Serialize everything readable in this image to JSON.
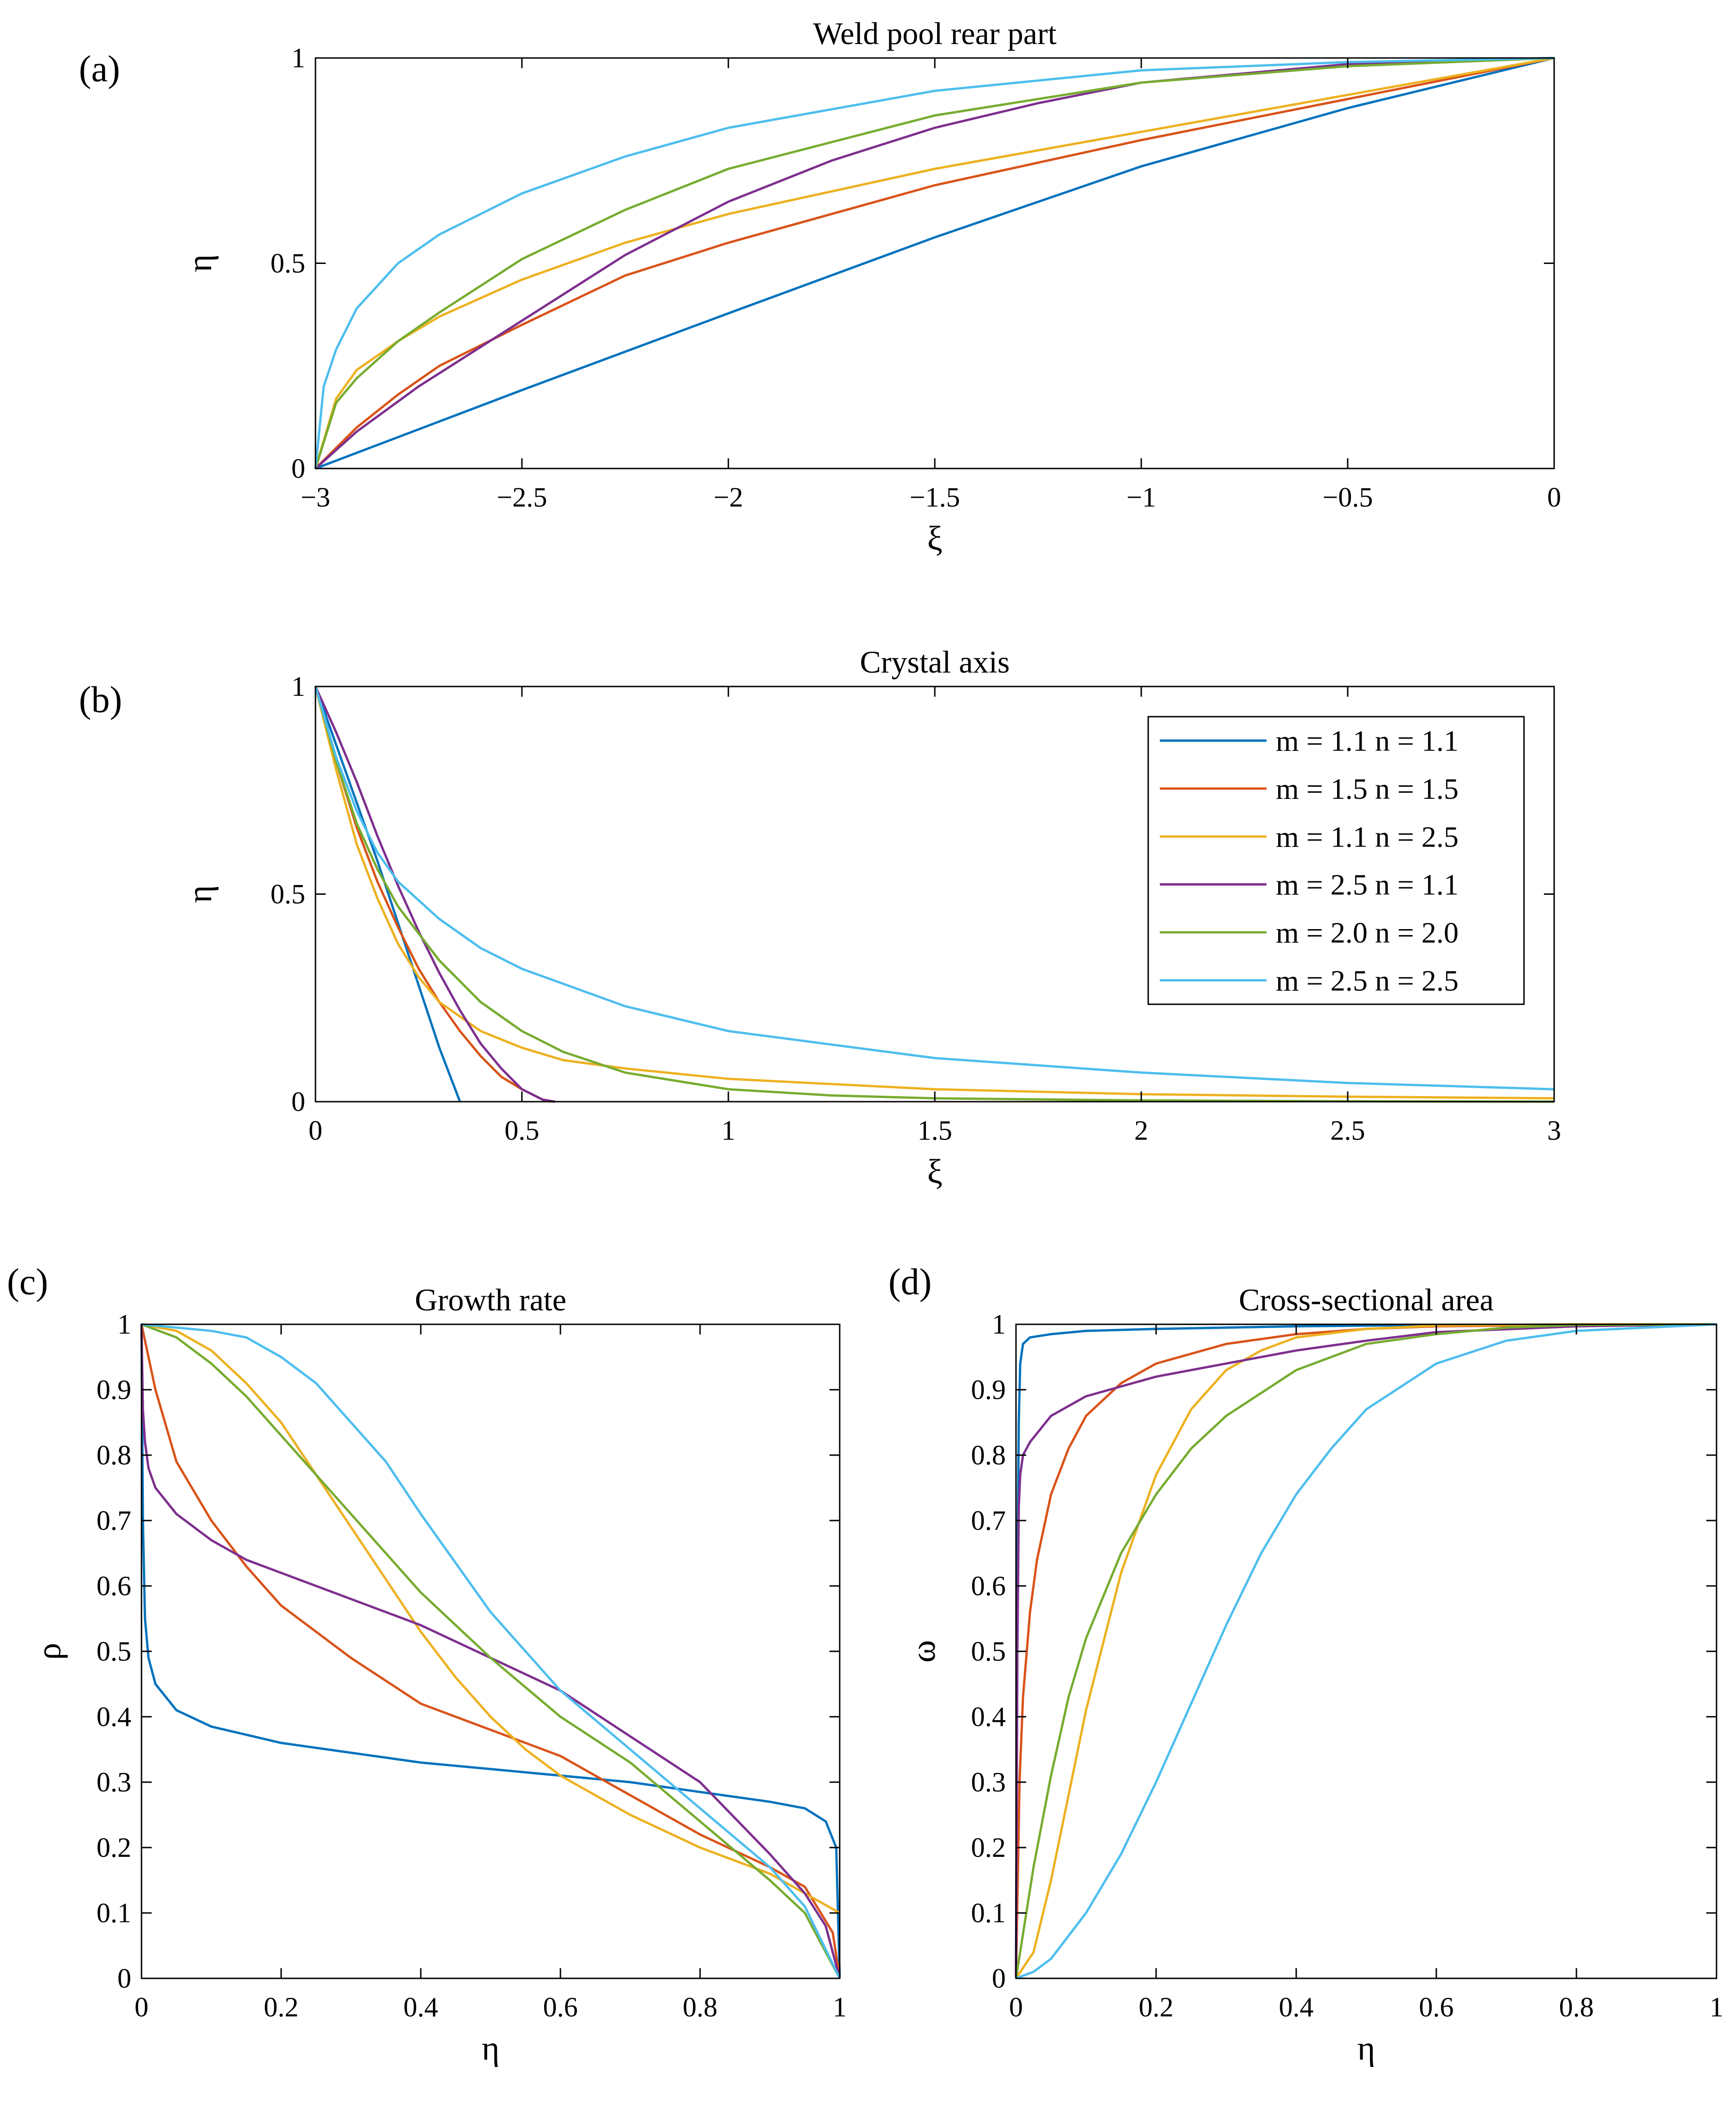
{
  "figure": {
    "series_colors": [
      "#0072BD",
      "#D95319",
      "#EDB120",
      "#7E2F8E",
      "#77AC30",
      "#4DBEEE"
    ],
    "legend": [
      "m = 1.1 n = 1.1",
      "m = 1.5 n = 1.5",
      "m = 1.1 n = 2.5",
      "m = 2.5 n = 1.1",
      "m = 2.0 n = 2.0",
      "m = 2.5 n = 2.5"
    ]
  },
  "chart_data": [
    {
      "id": "a",
      "type": "line",
      "panel_label": "(a)",
      "title": "Weld pool rear part",
      "xlabel": "ξ",
      "ylabel": "η",
      "xlim": [
        -3,
        0
      ],
      "ylim": [
        0,
        1
      ],
      "xticks": [
        -3,
        -2.5,
        -2,
        -1.5,
        -1,
        -0.5,
        0
      ],
      "yticks": [
        0,
        0.5,
        1
      ],
      "xtick_labels": [
        "−3",
        "−2.5",
        "−2",
        "−1.5",
        "−1",
        "−0.5",
        "0"
      ],
      "ytick_labels": [
        "0",
        "0.5",
        "1"
      ],
      "series": [
        {
          "name": "m = 1.1 n = 1.1",
          "x": [
            -3,
            -2.5,
            -2,
            -1.5,
            -1,
            -0.5,
            0
          ],
          "y": [
            0,
            0.191,
            0.378,
            0.563,
            0.736,
            0.878,
            1
          ]
        },
        {
          "name": "m = 1.5 n = 1.5",
          "x": [
            -3,
            -2.9,
            -2.8,
            -2.7,
            -2.5,
            -2.25,
            -2,
            -1.5,
            -1,
            -0.5,
            0
          ],
          "y": [
            0,
            0.1,
            0.18,
            0.25,
            0.35,
            0.47,
            0.55,
            0.69,
            0.8,
            0.9,
            1
          ]
        },
        {
          "name": "m = 1.1 n = 2.5",
          "x": [
            -3,
            -2.95,
            -2.9,
            -2.8,
            -2.7,
            -2.5,
            -2.25,
            -2,
            -1.5,
            -1,
            -0.5,
            0
          ],
          "y": [
            0,
            0.17,
            0.24,
            0.31,
            0.37,
            0.46,
            0.55,
            0.62,
            0.73,
            0.82,
            0.91,
            1
          ]
        },
        {
          "name": "m = 2.5 n = 1.1",
          "x": [
            -3,
            -2.9,
            -2.75,
            -2.5,
            -2.25,
            -2,
            -1.75,
            -1.5,
            -1.25,
            -1,
            -0.5,
            0
          ],
          "y": [
            0,
            0.09,
            0.2,
            0.36,
            0.52,
            0.65,
            0.75,
            0.83,
            0.89,
            0.94,
            0.985,
            1
          ]
        },
        {
          "name": "m = 2.0 n = 2.0",
          "x": [
            -3,
            -2.95,
            -2.9,
            -2.8,
            -2.7,
            -2.5,
            -2.25,
            -2,
            -1.5,
            -1,
            -0.5,
            0
          ],
          "y": [
            0,
            0.16,
            0.22,
            0.31,
            0.38,
            0.51,
            0.63,
            0.73,
            0.86,
            0.94,
            0.98,
            1
          ]
        },
        {
          "name": "m = 2.5 n = 2.5",
          "x": [
            -3,
            -2.98,
            -2.95,
            -2.9,
            -2.8,
            -2.7,
            -2.5,
            -2.25,
            -2,
            -1.5,
            -1,
            -0.5,
            0
          ],
          "y": [
            0,
            0.2,
            0.29,
            0.39,
            0.5,
            0.57,
            0.67,
            0.76,
            0.83,
            0.92,
            0.97,
            0.99,
            1
          ]
        }
      ]
    },
    {
      "id": "b",
      "type": "line",
      "panel_label": "(b)",
      "title": "Crystal axis",
      "xlabel": "ξ",
      "ylabel": "η",
      "xlim": [
        0,
        3
      ],
      "ylim": [
        0,
        1
      ],
      "xticks": [
        0,
        0.5,
        1,
        1.5,
        2,
        2.5,
        3
      ],
      "yticks": [
        0,
        0.5,
        1
      ],
      "xtick_labels": [
        "0",
        "0.5",
        "1",
        "1.5",
        "2",
        "2.5",
        "3"
      ],
      "ytick_labels": [
        "0",
        "0.5",
        "1"
      ],
      "legend_location": "top-right",
      "series": [
        {
          "name": "m = 1.1 n = 1.1",
          "x": [
            0,
            0.05,
            0.1,
            0.15,
            0.2,
            0.25,
            0.3,
            0.35
          ],
          "y": [
            1,
            0.86,
            0.72,
            0.58,
            0.43,
            0.28,
            0.13,
            0
          ]
        },
        {
          "name": "m = 1.5 n = 1.5",
          "x": [
            0,
            0.05,
            0.1,
            0.15,
            0.2,
            0.25,
            0.3,
            0.35,
            0.4,
            0.45,
            0.5,
            0.55,
            0.57
          ],
          "y": [
            1,
            0.82,
            0.66,
            0.53,
            0.42,
            0.32,
            0.24,
            0.17,
            0.11,
            0.06,
            0.03,
            0.005,
            0
          ]
        },
        {
          "name": "m = 1.1 n = 2.5",
          "x": [
            0,
            0.05,
            0.1,
            0.15,
            0.2,
            0.25,
            0.3,
            0.4,
            0.5,
            0.6,
            0.75,
            1,
            1.5,
            2,
            2.5,
            3
          ],
          "y": [
            1,
            0.8,
            0.62,
            0.49,
            0.38,
            0.3,
            0.24,
            0.17,
            0.13,
            0.1,
            0.08,
            0.055,
            0.03,
            0.018,
            0.012,
            0.008
          ]
        },
        {
          "name": "m = 2.5 n = 1.1",
          "x": [
            0,
            0.05,
            0.1,
            0.15,
            0.2,
            0.25,
            0.3,
            0.35,
            0.4,
            0.45,
            0.5,
            0.55,
            0.58
          ],
          "y": [
            1,
            0.89,
            0.77,
            0.64,
            0.52,
            0.41,
            0.31,
            0.22,
            0.14,
            0.08,
            0.03,
            0.005,
            0
          ]
        },
        {
          "name": "m = 2.0 n = 2.0",
          "x": [
            0,
            0.05,
            0.1,
            0.15,
            0.2,
            0.3,
            0.4,
            0.5,
            0.6,
            0.75,
            1,
            1.25,
            1.5,
            2,
            2.5,
            3
          ],
          "y": [
            1,
            0.82,
            0.67,
            0.56,
            0.47,
            0.34,
            0.24,
            0.17,
            0.12,
            0.07,
            0.03,
            0.015,
            0.008,
            0.003,
            0.001,
            0
          ]
        },
        {
          "name": "m = 2.5 n = 2.5",
          "x": [
            0,
            0.05,
            0.1,
            0.15,
            0.2,
            0.3,
            0.4,
            0.5,
            0.75,
            1,
            1.5,
            2,
            2.5,
            3
          ],
          "y": [
            1,
            0.83,
            0.7,
            0.6,
            0.53,
            0.44,
            0.37,
            0.32,
            0.23,
            0.17,
            0.105,
            0.07,
            0.045,
            0.03
          ]
        }
      ]
    },
    {
      "id": "c",
      "type": "line",
      "panel_label": "(c)",
      "title": "Growth rate",
      "xlabel": "η",
      "ylabel": "ρ",
      "xlim": [
        0,
        1
      ],
      "ylim": [
        0,
        1
      ],
      "xticks": [
        0,
        0.2,
        0.4,
        0.6,
        0.8,
        1
      ],
      "yticks": [
        0,
        0.1,
        0.2,
        0.3,
        0.4,
        0.5,
        0.6,
        0.7,
        0.8,
        0.9,
        1
      ],
      "xtick_labels": [
        "0",
        "0.2",
        "0.4",
        "0.6",
        "0.8",
        "1"
      ],
      "ytick_labels": [
        "0",
        "0.1",
        "0.2",
        "0.3",
        "0.4",
        "0.5",
        "0.6",
        "0.7",
        "0.8",
        "0.9",
        "1"
      ],
      "series": [
        {
          "name": "m = 1.1 n = 1.1",
          "x": [
            0,
            0.002,
            0.005,
            0.01,
            0.02,
            0.05,
            0.1,
            0.2,
            0.3,
            0.4,
            0.5,
            0.6,
            0.7,
            0.8,
            0.9,
            0.95,
            0.98,
            0.995,
            1
          ],
          "y": [
            1,
            0.7,
            0.55,
            0.49,
            0.45,
            0.41,
            0.385,
            0.36,
            0.345,
            0.33,
            0.32,
            0.31,
            0.3,
            0.285,
            0.27,
            0.26,
            0.24,
            0.2,
            0
          ]
        },
        {
          "name": "m = 1.5 n = 1.5",
          "x": [
            0,
            0.02,
            0.05,
            0.1,
            0.15,
            0.2,
            0.3,
            0.4,
            0.5,
            0.6,
            0.7,
            0.8,
            0.9,
            0.95,
            0.99,
            1
          ],
          "y": [
            1,
            0.9,
            0.79,
            0.7,
            0.63,
            0.57,
            0.49,
            0.42,
            0.38,
            0.34,
            0.28,
            0.22,
            0.17,
            0.14,
            0.07,
            0
          ]
        },
        {
          "name": "m = 1.1 n = 2.5",
          "x": [
            0,
            0.05,
            0.1,
            0.15,
            0.2,
            0.25,
            0.3,
            0.35,
            0.4,
            0.45,
            0.5,
            0.55,
            0.6,
            0.7,
            0.8,
            0.9,
            0.95,
            1
          ],
          "y": [
            1,
            0.99,
            0.96,
            0.91,
            0.85,
            0.77,
            0.69,
            0.61,
            0.53,
            0.46,
            0.4,
            0.35,
            0.31,
            0.25,
            0.2,
            0.16,
            0.13,
            0.1
          ]
        },
        {
          "name": "m = 2.5 n = 1.1",
          "x": [
            0,
            0.002,
            0.005,
            0.01,
            0.02,
            0.05,
            0.1,
            0.15,
            0.2,
            0.3,
            0.4,
            0.5,
            0.6,
            0.7,
            0.8,
            0.9,
            0.95,
            0.98,
            1
          ],
          "y": [
            1,
            0.87,
            0.82,
            0.78,
            0.75,
            0.71,
            0.67,
            0.64,
            0.62,
            0.58,
            0.54,
            0.49,
            0.44,
            0.37,
            0.3,
            0.19,
            0.13,
            0.08,
            0
          ]
        },
        {
          "name": "m = 2.0 n = 2.0",
          "x": [
            0,
            0.05,
            0.1,
            0.15,
            0.2,
            0.3,
            0.4,
            0.5,
            0.6,
            0.7,
            0.8,
            0.9,
            0.95,
            1
          ],
          "y": [
            1,
            0.98,
            0.94,
            0.89,
            0.83,
            0.71,
            0.59,
            0.49,
            0.4,
            0.33,
            0.24,
            0.15,
            0.1,
            0
          ]
        },
        {
          "name": "m = 2.5 n = 2.5",
          "x": [
            0,
            0.1,
            0.15,
            0.2,
            0.25,
            0.3,
            0.35,
            0.4,
            0.5,
            0.6,
            0.7,
            0.8,
            0.9,
            0.95,
            1
          ],
          "y": [
            1,
            0.99,
            0.98,
            0.95,
            0.91,
            0.85,
            0.79,
            0.71,
            0.56,
            0.44,
            0.35,
            0.26,
            0.17,
            0.11,
            0
          ]
        }
      ]
    },
    {
      "id": "d",
      "type": "line",
      "panel_label": "(d)",
      "title": "Cross-sectional area",
      "xlabel": "η",
      "ylabel": "ω",
      "xlim": [
        0,
        1
      ],
      "ylim": [
        0,
        1
      ],
      "xticks": [
        0,
        0.2,
        0.4,
        0.6,
        0.8,
        1
      ],
      "yticks": [
        0,
        0.1,
        0.2,
        0.3,
        0.4,
        0.5,
        0.6,
        0.7,
        0.8,
        0.9,
        1
      ],
      "xtick_labels": [
        "0",
        "0.2",
        "0.4",
        "0.6",
        "0.8",
        "1"
      ],
      "ytick_labels": [
        "0",
        "0.1",
        "0.2",
        "0.3",
        "0.4",
        "0.5",
        "0.6",
        "0.7",
        "0.8",
        "0.9",
        "1"
      ],
      "series": [
        {
          "name": "m = 1.1 n = 1.1",
          "x": [
            0,
            0.002,
            0.004,
            0.006,
            0.01,
            0.02,
            0.05,
            0.1,
            0.2,
            0.4,
            0.6,
            1
          ],
          "y": [
            0,
            0.6,
            0.85,
            0.94,
            0.97,
            0.98,
            0.985,
            0.99,
            0.993,
            0.997,
            0.999,
            1
          ]
        },
        {
          "name": "m = 1.5 n = 1.5",
          "x": [
            0,
            0.005,
            0.01,
            0.02,
            0.03,
            0.05,
            0.075,
            0.1,
            0.15,
            0.2,
            0.3,
            0.4,
            0.5,
            0.6,
            0.8,
            1
          ],
          "y": [
            0,
            0.3,
            0.43,
            0.56,
            0.64,
            0.74,
            0.81,
            0.86,
            0.91,
            0.94,
            0.97,
            0.985,
            0.993,
            0.997,
            0.999,
            1
          ]
        },
        {
          "name": "m = 1.1 n = 2.5",
          "x": [
            0,
            0.025,
            0.05,
            0.075,
            0.1,
            0.15,
            0.2,
            0.25,
            0.3,
            0.35,
            0.4,
            0.5,
            0.6,
            0.8,
            1
          ],
          "y": [
            0,
            0.04,
            0.15,
            0.28,
            0.41,
            0.62,
            0.77,
            0.87,
            0.93,
            0.96,
            0.98,
            0.993,
            0.998,
            1,
            1
          ]
        },
        {
          "name": "m = 2.5 n = 1.1",
          "x": [
            0,
            0.002,
            0.004,
            0.006,
            0.01,
            0.02,
            0.05,
            0.1,
            0.15,
            0.2,
            0.3,
            0.4,
            0.5,
            0.6,
            0.8,
            1
          ],
          "y": [
            0,
            0.5,
            0.72,
            0.77,
            0.8,
            0.82,
            0.86,
            0.89,
            0.905,
            0.92,
            0.94,
            0.96,
            0.975,
            0.988,
            0.997,
            1
          ]
        },
        {
          "name": "m = 2.0 n = 2.0",
          "x": [
            0,
            0.025,
            0.05,
            0.075,
            0.1,
            0.15,
            0.2,
            0.25,
            0.3,
            0.4,
            0.5,
            0.6,
            0.7,
            0.8,
            1
          ],
          "y": [
            0,
            0.17,
            0.31,
            0.43,
            0.52,
            0.65,
            0.74,
            0.81,
            0.86,
            0.93,
            0.97,
            0.985,
            0.995,
            0.999,
            1
          ]
        },
        {
          "name": "m = 2.5 n = 2.5",
          "x": [
            0,
            0.025,
            0.05,
            0.1,
            0.15,
            0.2,
            0.25,
            0.3,
            0.35,
            0.4,
            0.45,
            0.5,
            0.6,
            0.7,
            0.8,
            1
          ],
          "y": [
            0,
            0.01,
            0.03,
            0.1,
            0.19,
            0.3,
            0.42,
            0.54,
            0.65,
            0.74,
            0.81,
            0.87,
            0.94,
            0.975,
            0.99,
            1
          ]
        }
      ]
    }
  ]
}
